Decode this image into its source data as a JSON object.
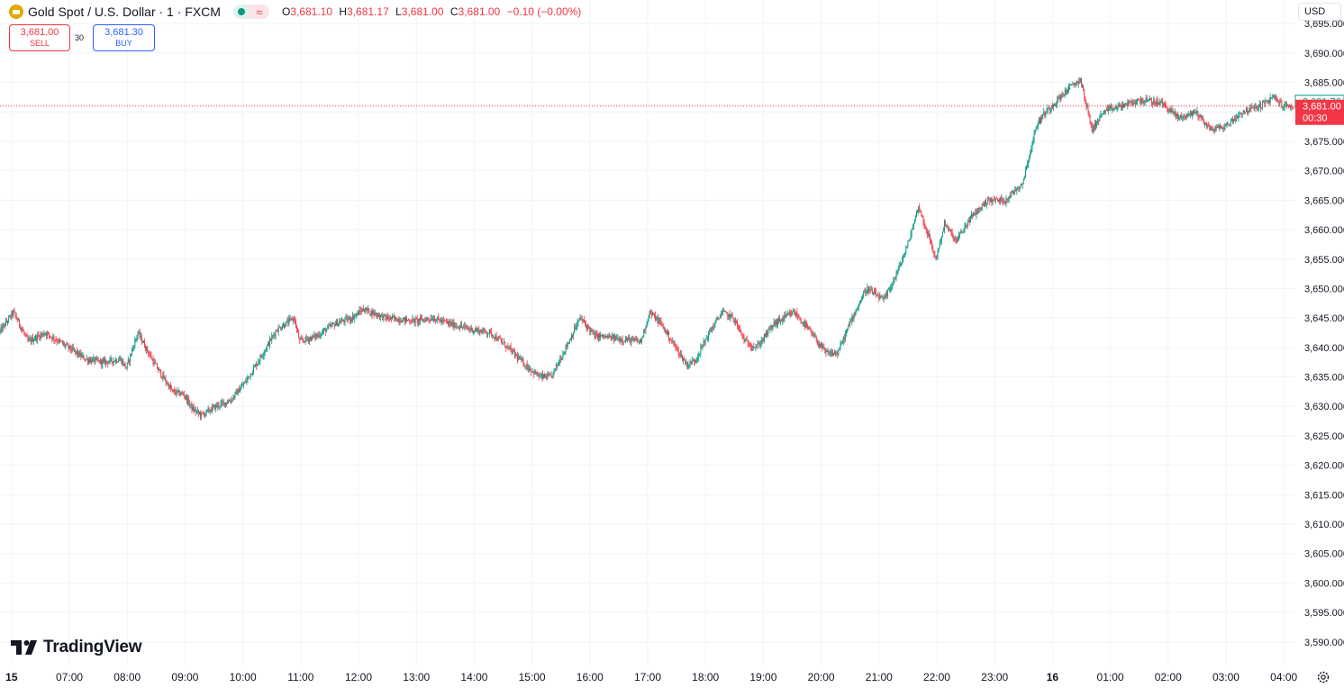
{
  "header": {
    "title": "Gold Spot / U.S. Dollar · 1 · FXCM",
    "icon": "gold-bar-icon",
    "ohlc": [
      {
        "k": "O",
        "v": "3,681.10"
      },
      {
        "k": "H",
        "v": "3,681.17"
      },
      {
        "k": "L",
        "v": "3,681.00"
      },
      {
        "k": "C",
        "v": "3,681.00"
      }
    ],
    "change": "−0.10 (−0.00%)",
    "status_icons": [
      "market-open-dot-icon",
      "data-delay-wave-icon"
    ]
  },
  "trade": {
    "sell_price": "3,681.00",
    "sell_label": "SELL",
    "spread": "30",
    "buy_price": "3,681.30",
    "buy_label": "BUY"
  },
  "currency": "USD",
  "brand": "TradingView",
  "colors": {
    "up": "#089981",
    "down": "#f23645",
    "grid": "#f0f3fa",
    "axis_text": "#131722",
    "price_line": "#f23645"
  },
  "chart_data": {
    "type": "candlestick",
    "ylim": [
      3586,
      3699
    ],
    "y_ticks": [
      3590,
      3595,
      3600,
      3605,
      3610,
      3615,
      3620,
      3625,
      3630,
      3635,
      3640,
      3645,
      3650,
      3655,
      3660,
      3665,
      3670,
      3675,
      3680,
      3685,
      3690,
      3695
    ],
    "x_ticks": [
      "15",
      "07:00",
      "08:00",
      "09:00",
      "10:00",
      "11:00",
      "12:00",
      "13:00",
      "14:00",
      "15:00",
      "16:00",
      "17:00",
      "18:00",
      "19:00",
      "20:00",
      "21:00",
      "22:00",
      "23:00",
      "16",
      "01:00",
      "02:00",
      "03:00",
      "04:00"
    ],
    "x_range_hours": [
      5.8,
      28.2
    ],
    "price_path": [
      [
        5.8,
        3642.5
      ],
      [
        6.05,
        3646
      ],
      [
        6.3,
        3641
      ],
      [
        6.6,
        3642.5
      ],
      [
        7.0,
        3640
      ],
      [
        7.3,
        3638
      ],
      [
        7.6,
        3637.5
      ],
      [
        7.9,
        3638
      ],
      [
        8.0,
        3636.5
      ],
      [
        8.2,
        3642.5
      ],
      [
        8.5,
        3637
      ],
      [
        8.8,
        3632.5
      ],
      [
        9.0,
        3632
      ],
      [
        9.15,
        3629.5
      ],
      [
        9.3,
        3628.5
      ],
      [
        9.55,
        3630
      ],
      [
        9.8,
        3631
      ],
      [
        10.05,
        3634
      ],
      [
        10.3,
        3638
      ],
      [
        10.6,
        3643
      ],
      [
        10.9,
        3645
      ],
      [
        11.0,
        3641
      ],
      [
        11.3,
        3642
      ],
      [
        11.6,
        3644
      ],
      [
        11.9,
        3645
      ],
      [
        12.1,
        3646.5
      ],
      [
        12.5,
        3645
      ],
      [
        13.0,
        3644.5
      ],
      [
        13.3,
        3645
      ],
      [
        13.6,
        3644
      ],
      [
        14.0,
        3643
      ],
      [
        14.3,
        3642.5
      ],
      [
        14.6,
        3640
      ],
      [
        14.9,
        3637
      ],
      [
        15.15,
        3635
      ],
      [
        15.35,
        3635
      ],
      [
        15.6,
        3640
      ],
      [
        15.85,
        3645
      ],
      [
        16.1,
        3642
      ],
      [
        16.5,
        3641.5
      ],
      [
        16.9,
        3641
      ],
      [
        17.05,
        3646
      ],
      [
        17.25,
        3644
      ],
      [
        17.5,
        3640
      ],
      [
        17.7,
        3637
      ],
      [
        17.85,
        3638
      ],
      [
        18.05,
        3642
      ],
      [
        18.3,
        3646
      ],
      [
        18.5,
        3645
      ],
      [
        18.7,
        3641
      ],
      [
        18.9,
        3640
      ],
      [
        19.2,
        3644
      ],
      [
        19.55,
        3646
      ],
      [
        19.8,
        3643
      ],
      [
        20.1,
        3639
      ],
      [
        20.3,
        3639
      ],
      [
        20.55,
        3645
      ],
      [
        20.8,
        3650
      ],
      [
        21.1,
        3648
      ],
      [
        21.3,
        3652
      ],
      [
        21.5,
        3657
      ],
      [
        21.7,
        3664
      ],
      [
        21.9,
        3658
      ],
      [
        22.0,
        3655
      ],
      [
        22.15,
        3661
      ],
      [
        22.35,
        3658
      ],
      [
        22.6,
        3662
      ],
      [
        22.9,
        3665
      ],
      [
        23.2,
        3665
      ],
      [
        23.5,
        3668
      ],
      [
        23.75,
        3678
      ],
      [
        23.9,
        3680
      ],
      [
        24.3,
        3684
      ],
      [
        24.5,
        3685.5
      ],
      [
        24.7,
        3677
      ],
      [
        24.9,
        3680
      ],
      [
        25.2,
        3681
      ],
      [
        25.55,
        3682
      ],
      [
        25.9,
        3681.5
      ],
      [
        26.2,
        3679
      ],
      [
        26.5,
        3680
      ],
      [
        26.75,
        3677
      ],
      [
        27.0,
        3677.5
      ],
      [
        27.3,
        3680
      ],
      [
        27.6,
        3681
      ],
      [
        27.85,
        3682.5
      ],
      [
        28.0,
        3681
      ],
      [
        28.15,
        3681
      ]
    ],
    "last_price_label": "3,681.00",
    "countdown_label": "00:30",
    "secondary_price_label": "3,681.76",
    "last_price": 3681.0,
    "secondary_price": 3681.76
  }
}
